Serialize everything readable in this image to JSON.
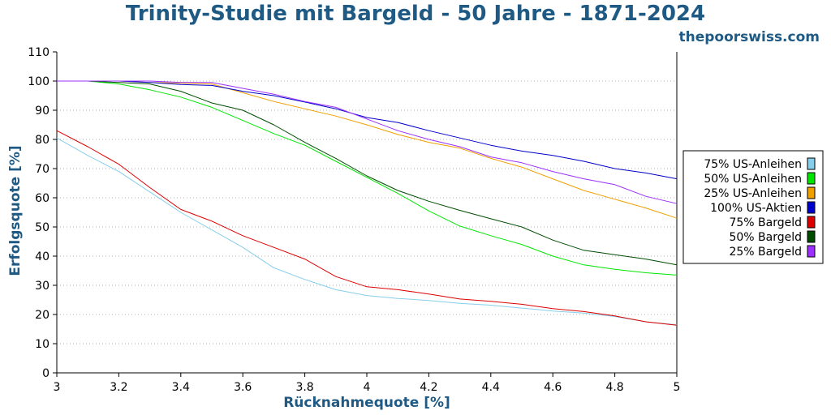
{
  "chart_data": {
    "type": "line",
    "title": "Trinity-Studie mit Bargeld - 50 Jahre - 1871-2024",
    "watermark": "thepoorswiss.com",
    "xlabel": "Rücknahmequote [%]",
    "ylabel": "Erfolgsquote [%]",
    "xlim": [
      3,
      5
    ],
    "ylim": [
      0,
      110
    ],
    "x_ticks": [
      "3",
      "3.2",
      "3.4",
      "3.6",
      "3.8",
      "4",
      "4.2",
      "4.4",
      "4.6",
      "4.8",
      "5"
    ],
    "y_ticks": [
      "0",
      "10",
      "20",
      "30",
      "40",
      "50",
      "60",
      "70",
      "80",
      "90",
      "100",
      "110"
    ],
    "grid": "horizontal dotted",
    "legend_position": "right",
    "x": [
      3.0,
      3.1,
      3.2,
      3.3,
      3.4,
      3.5,
      3.6,
      3.7,
      3.8,
      3.9,
      4.0,
      4.1,
      4.2,
      4.3,
      4.4,
      4.5,
      4.6,
      4.7,
      4.8,
      4.9,
      5.0
    ],
    "series": [
      {
        "name": "75% US-Anleihen",
        "color": "#87ceeb",
        "values": [
          80.5,
          74.5,
          69,
          62,
          55,
          49,
          43,
          36,
          32,
          28.5,
          26.5,
          25.5,
          24.8,
          23.8,
          23.2,
          22.2,
          21.2,
          20.5,
          19.3,
          17.5,
          16.5
        ]
      },
      {
        "name": "50% US-Anleihen",
        "color": "#00e600",
        "values": [
          100,
          100,
          99,
          97,
          94.5,
          91,
          86.5,
          82,
          78,
          72.5,
          67,
          61.5,
          55.5,
          50.3,
          47,
          44,
          40,
          37,
          35.5,
          34.3,
          33.5
        ]
      },
      {
        "name": "25% US-Anleihen",
        "color": "#f0a000",
        "values": [
          100,
          100,
          100,
          99.5,
          99.3,
          99,
          96,
          93,
          90.5,
          88,
          85,
          81.7,
          79,
          77,
          73.5,
          70.5,
          66.5,
          62.5,
          59.5,
          56.5,
          53
        ]
      },
      {
        "name": "100% US-Aktien",
        "color": "#0000cc",
        "values": [
          100,
          100,
          100,
          99.5,
          98.8,
          98.5,
          96.5,
          95,
          92.8,
          90.5,
          87.5,
          85.8,
          83,
          80.5,
          78,
          76,
          74.5,
          72.5,
          70,
          68.5,
          66.5
        ]
      },
      {
        "name": "75% Bargeld",
        "color": "#dd0000",
        "values": [
          83,
          77.5,
          71.5,
          63.5,
          56,
          52,
          47,
          43,
          39,
          33,
          29.5,
          28.5,
          27,
          25.3,
          24.5,
          23.5,
          22,
          21,
          19.5,
          17.5,
          16.3
        ]
      },
      {
        "name": "50% Bargeld",
        "color": "#004d00",
        "values": [
          100,
          100,
          99.5,
          99,
          96.5,
          92.5,
          90,
          85,
          79,
          73.5,
          67.5,
          62.5,
          58.8,
          55.7,
          52.8,
          50,
          45.5,
          42,
          40.5,
          39,
          37
        ]
      },
      {
        "name": "25% Bargeld",
        "color": "#9b30ff",
        "values": [
          100,
          100,
          100,
          100,
          99.5,
          99.5,
          97.5,
          95.5,
          93,
          91,
          87,
          83,
          80,
          77.5,
          74,
          72,
          69,
          66.5,
          64.5,
          60.5,
          58
        ]
      }
    ]
  }
}
